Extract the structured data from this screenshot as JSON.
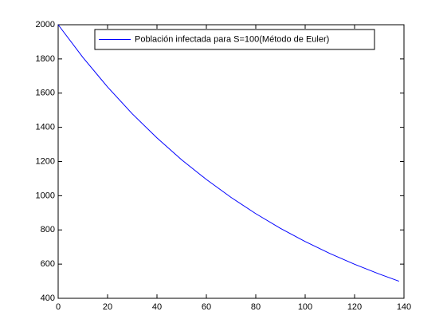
{
  "chart_data": {
    "type": "line",
    "x": [
      0,
      10,
      20,
      30,
      40,
      50,
      60,
      70,
      80,
      90,
      100,
      110,
      120,
      130,
      138
    ],
    "series": [
      {
        "name": "Población infectada para S=100(Método de Euler)",
        "color": "#0000ff",
        "values": [
          2000,
          1809,
          1636,
          1479,
          1338,
          1210,
          1095,
          990,
          895,
          809,
          732,
          662,
          599,
          542,
          500
        ]
      }
    ],
    "xlim": [
      0,
      140
    ],
    "xticks": [
      0,
      20,
      40,
      60,
      80,
      100,
      120,
      140
    ],
    "ylim": [
      400,
      2000
    ],
    "yticks": [
      400,
      600,
      800,
      1000,
      1200,
      1400,
      1600,
      1800,
      2000
    ],
    "grid": false,
    "legend": "top"
  }
}
